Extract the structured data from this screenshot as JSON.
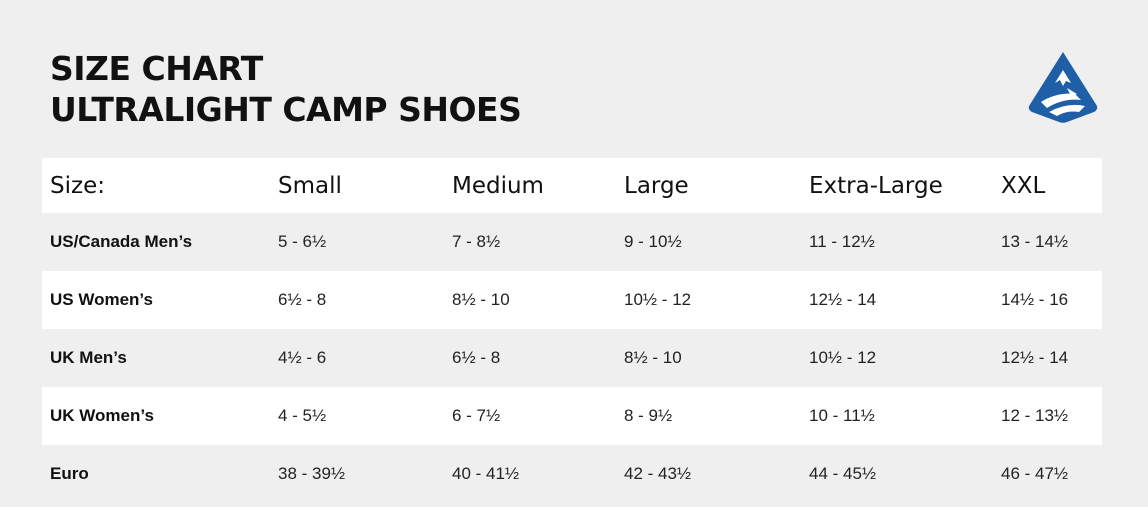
{
  "title": {
    "line1": "SIZE CHART",
    "line2": "ULTRALIGHT CAMP SHOES"
  },
  "logo": {
    "icon": "mountain-peak-logo-icon",
    "color": "#1f5fa8"
  },
  "table": {
    "headers": [
      "Size:",
      "Small",
      "Medium",
      "Large",
      "Extra-Large",
      "XXL"
    ],
    "rows": [
      {
        "label": "US/Canada Men’s",
        "cells": [
          "5 - 6½",
          "7 - 8½",
          "9 - 10½",
          "11 - 12½",
          "13 - 14½"
        ]
      },
      {
        "label": "US Women’s",
        "cells": [
          "6½ - 8",
          "8½ - 10",
          "10½ - 12",
          "12½ -  14",
          "14½ -  16"
        ]
      },
      {
        "label": "UK Men’s",
        "cells": [
          "4½ - 6",
          "6½ - 8",
          "8½  - 10",
          "10½ - 12",
          "12½ - 14"
        ]
      },
      {
        "label": "UK Women’s",
        "cells": [
          "4 - 5½",
          "6 - 7½",
          "8 - 9½",
          "10 - 11½",
          "12 - 13½"
        ]
      },
      {
        "label": "Euro",
        "cells": [
          "38 - 39½",
          "40 - 41½",
          "42 - 43½",
          "44 - 45½",
          "46 - 47½"
        ]
      }
    ]
  }
}
